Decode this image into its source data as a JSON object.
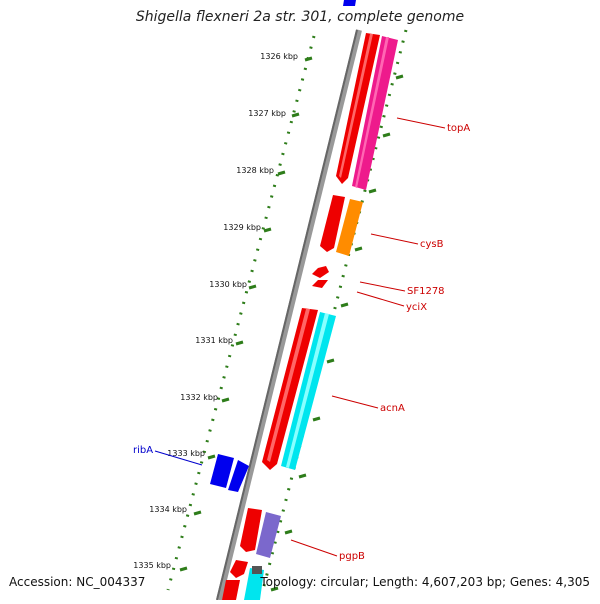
{
  "title": "Shigella flexneri 2a str. 301, complete genome",
  "footer": {
    "accession": "Accession: NC_004337",
    "summary": "Topology: circular; Length: 4,607,203 bp; Genes: 4,305"
  },
  "scale_unit": "kbp",
  "ticks": [
    "1326 kbp",
    "1327 kbp",
    "1328 kbp",
    "1329 kbp",
    "1330 kbp",
    "1331 kbp",
    "1332 kbp",
    "1333 kbp",
    "1334 kbp",
    "1335 kbp"
  ],
  "gene_labels": [
    {
      "text": "topA",
      "color": "#cc0000"
    },
    {
      "text": "cysB",
      "color": "#cc0000"
    },
    {
      "text": "SF1278",
      "color": "#cc0000"
    },
    {
      "text": "yciX",
      "color": "#cc0000"
    },
    {
      "text": "acnA",
      "color": "#cc0000"
    },
    {
      "text": "ribA",
      "color": "#0000cc"
    },
    {
      "text": "pgpB",
      "color": "#cc0000"
    }
  ],
  "colors": {
    "backbone": "#888888",
    "tick": "#2e7d1a",
    "cds": "#ee0000",
    "gene_magenta": "#ee1a8c",
    "gene_orange": "#ff8c00",
    "gene_cyan": "#00e5ee",
    "gene_blue": "#0000ee",
    "gene_purple": "#7b68cc",
    "label_red": "#cc0000",
    "label_blue": "#0000cc"
  }
}
